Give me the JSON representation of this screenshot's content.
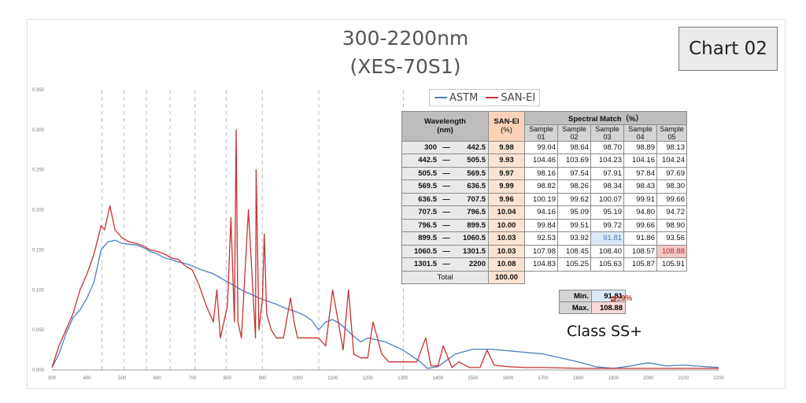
{
  "header": {
    "title_line1": "300-2200nm",
    "title_line2": "(XES-70S1)",
    "badge": "Chart 02"
  },
  "chart_data": {
    "type": "line",
    "xlabel": "",
    "ylabel": "",
    "xlim": [
      300,
      2200
    ],
    "ylim": [
      0,
      0.35
    ],
    "x_ticks": [
      300,
      400,
      500,
      600,
      700,
      800,
      900,
      1000,
      1100,
      1200,
      1300,
      1400,
      1500,
      1600,
      1700,
      1800,
      1900,
      2000,
      2100,
      2200
    ],
    "y_ticks": [
      "0.000",
      "0.050",
      "0.100",
      "0.150",
      "0.200",
      "0.250",
      "0.300",
      "0.350"
    ],
    "dashed_gridlines_x": [
      442.5,
      505.5,
      569.5,
      636.5,
      707.5,
      796.5,
      899.5,
      1060.5,
      1301.5
    ],
    "legend_position": "top-center",
    "series": [
      {
        "name": "ASTM",
        "color": "#4a7fc1",
        "x": [
          300,
          320,
          340,
          360,
          380,
          400,
          420,
          440,
          460,
          480,
          500,
          520,
          540,
          560,
          580,
          600,
          620,
          640,
          660,
          680,
          700,
          720,
          740,
          760,
          780,
          800,
          820,
          840,
          860,
          880,
          900,
          920,
          940,
          960,
          980,
          1000,
          1020,
          1040,
          1060,
          1080,
          1100,
          1120,
          1140,
          1160,
          1180,
          1200,
          1250,
          1300,
          1350,
          1370,
          1400,
          1450,
          1500,
          1550,
          1600,
          1700,
          1800,
          1850,
          1900,
          1950,
          2000,
          2050,
          2100,
          2200
        ],
        "y": [
          0.003,
          0.02,
          0.045,
          0.065,
          0.075,
          0.09,
          0.11,
          0.15,
          0.16,
          0.162,
          0.158,
          0.157,
          0.156,
          0.153,
          0.148,
          0.145,
          0.14,
          0.138,
          0.135,
          0.133,
          0.13,
          0.126,
          0.123,
          0.12,
          0.115,
          0.11,
          0.105,
          0.1,
          0.096,
          0.092,
          0.088,
          0.085,
          0.082,
          0.078,
          0.075,
          0.072,
          0.068,
          0.062,
          0.05,
          0.06,
          0.063,
          0.058,
          0.05,
          0.042,
          0.035,
          0.04,
          0.035,
          0.025,
          0.01,
          0.002,
          0.004,
          0.02,
          0.026,
          0.026,
          0.024,
          0.02,
          0.01,
          0.004,
          0.002,
          0.005,
          0.009,
          0.005,
          0.006,
          0.003
        ]
      },
      {
        "name": "SAN-EI",
        "color": "#c8312e",
        "x": [
          300,
          320,
          340,
          360,
          380,
          400,
          420,
          440,
          450,
          465,
          480,
          500,
          520,
          540,
          560,
          580,
          600,
          620,
          640,
          660,
          680,
          700,
          720,
          740,
          760,
          770,
          780,
          800,
          810,
          820,
          825,
          830,
          840,
          860,
          880,
          882,
          890,
          900,
          905,
          912,
          925,
          940,
          960,
          980,
          990,
          1000,
          1020,
          1045,
          1060,
          1080,
          1100,
          1130,
          1145,
          1160,
          1180,
          1200,
          1215,
          1240,
          1260,
          1300,
          1340,
          1365,
          1380,
          1400,
          1415,
          1440,
          1460,
          1490,
          1520,
          1540,
          1560,
          1600,
          1650,
          1700,
          1800,
          1900,
          2000,
          2050,
          2100,
          2200
        ],
        "y": [
          0.003,
          0.03,
          0.05,
          0.07,
          0.1,
          0.12,
          0.145,
          0.18,
          0.175,
          0.205,
          0.175,
          0.165,
          0.16,
          0.158,
          0.155,
          0.15,
          0.148,
          0.145,
          0.14,
          0.138,
          0.13,
          0.125,
          0.105,
          0.08,
          0.06,
          0.1,
          0.04,
          0.08,
          0.19,
          0.06,
          0.3,
          0.06,
          0.04,
          0.2,
          0.04,
          0.25,
          0.05,
          0.09,
          0.17,
          0.07,
          0.05,
          0.04,
          0.04,
          0.09,
          0.06,
          0.04,
          0.04,
          0.04,
          0.04,
          0.03,
          0.1,
          0.025,
          0.1,
          0.02,
          0.015,
          0.015,
          0.06,
          0.02,
          0.01,
          0.01,
          0.01,
          0.04,
          0.005,
          0.005,
          0.03,
          0.003,
          0.01,
          0.003,
          0.003,
          0.025,
          0.006,
          0.004,
          0.003,
          0.003,
          0.002,
          0.002,
          0.002,
          0.002,
          0.002,
          0.002
        ]
      }
    ]
  },
  "legend": {
    "items": [
      {
        "name": "ASTM",
        "color": "#4a7fc1"
      },
      {
        "name": "SAN-EI",
        "color": "#c8312e"
      }
    ]
  },
  "table": {
    "header_wavelength": "Wavelength",
    "header_wavelength_unit": "(nm)",
    "header_sanei": "SAN-EI",
    "header_sanei_unit": "(%)",
    "header_spectral": "Spectral Match（%）",
    "samples": [
      "Sample\n01",
      "Sample\n02",
      "Sample\n03",
      "Sample\n04",
      "Sample\n05"
    ],
    "rows": [
      {
        "from": "300",
        "to": "442.5",
        "san": "9.98",
        "v": [
          "99.04",
          "98.64",
          "98.70",
          "98.89",
          "98.13"
        ]
      },
      {
        "from": "442.5",
        "to": "505.5",
        "san": "9.93",
        "v": [
          "104.46",
          "103.69",
          "104.23",
          "104.16",
          "104.24"
        ]
      },
      {
        "from": "505.5",
        "to": "569.5",
        "san": "9.97",
        "v": [
          "98.16",
          "97.54",
          "97.91",
          "97.84",
          "97.69"
        ]
      },
      {
        "from": "569.5",
        "to": "636.5",
        "san": "9.99",
        "v": [
          "98.82",
          "98.26",
          "98.34",
          "98.43",
          "98.30"
        ]
      },
      {
        "from": "636.5",
        "to": "707.5",
        "san": "9.96",
        "v": [
          "100.19",
          "99.62",
          "100.07",
          "99.91",
          "99.66"
        ]
      },
      {
        "from": "707.5",
        "to": "796.5",
        "san": "10.04",
        "v": [
          "94.16",
          "95.09",
          "95.19",
          "94.80",
          "94.72"
        ]
      },
      {
        "from": "796.5",
        "to": "899.5",
        "san": "10.00",
        "v": [
          "99.84",
          "99.51",
          "99.72",
          "99.66",
          "98.90"
        ]
      },
      {
        "from": "899.5",
        "to": "1060.5",
        "san": "10.03",
        "v": [
          "92.53",
          "93.92",
          "91.81",
          "91.86",
          "93.56"
        ]
      },
      {
        "from": "1060.5",
        "to": "1301.5",
        "san": "10.03",
        "v": [
          "107.98",
          "108.45",
          "108.40",
          "108.57",
          "108.88"
        ]
      },
      {
        "from": "1301.5",
        "to": "2200",
        "san": "10.08",
        "v": [
          "104.83",
          "105.25",
          "105.63",
          "105.87",
          "105.91"
        ]
      }
    ],
    "dash": "—",
    "total_label": "Total",
    "total_value": "100.00"
  },
  "summary": {
    "min_label": "Min.",
    "min_value": "91.81",
    "max_label": "Max.",
    "max_value": "108.88",
    "tolerance": "≦±9%",
    "class_label": "Class SS+"
  }
}
